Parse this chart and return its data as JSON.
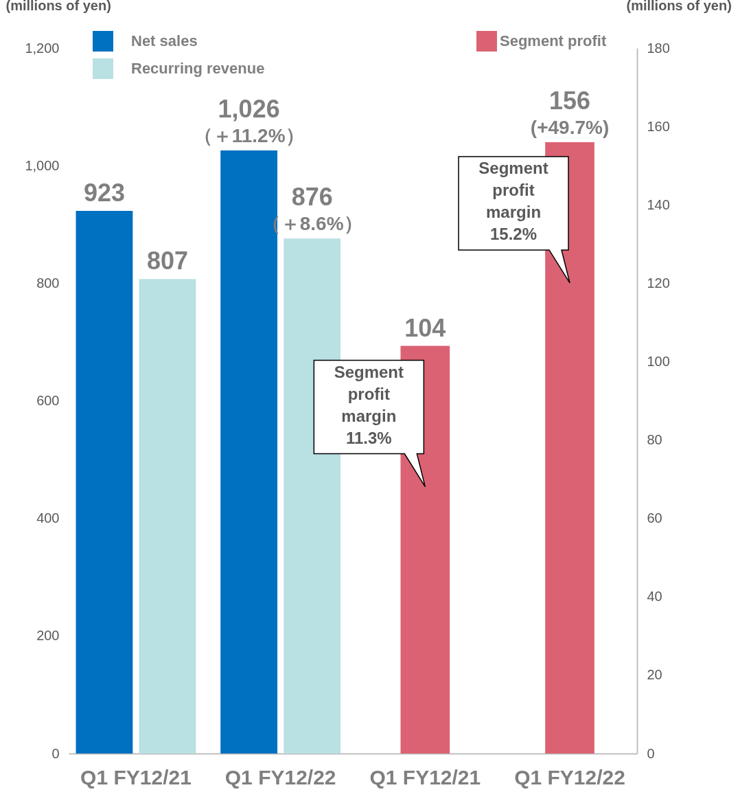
{
  "chart_data": {
    "type": "bar",
    "categories": [
      "Q1 FY12/21",
      "Q1 FY12/22",
      "Q1 FY12/21",
      "Q1 FY12/22"
    ],
    "ylabel": "(millions of yen)",
    "y2label": "(millions of yen)",
    "series": [
      {
        "name": "Net sales",
        "color": "#0070c0",
        "values": [
          923,
          1026,
          null,
          null
        ],
        "value_labels": [
          "923",
          "1,026\n（＋11.2%）",
          null,
          null
        ]
      },
      {
        "name": "Recurring revenue",
        "color": "#b9e0e3",
        "values": [
          807,
          876,
          null,
          null
        ],
        "value_labels": [
          "807",
          "876\n（＋8.6%）",
          null,
          null
        ]
      },
      {
        "name": "Segment profit",
        "color": "#db6272",
        "axis": "y2",
        "values": [
          null,
          null,
          104,
          156
        ],
        "value_labels": [
          null,
          null,
          "104",
          "156\n(+49.7%)"
        ]
      }
    ],
    "ylim": [
      0,
      1200
    ],
    "yticks": [
      0,
      200,
      400,
      600,
      800,
      {
        "value": 1000,
        "label": "1,000"
      },
      {
        "value": 1200,
        "label": "1,200"
      }
    ],
    "y2lim": [
      0,
      180
    ],
    "y2ticks": [
      0,
      20,
      40,
      60,
      80,
      100,
      120,
      140,
      160,
      180
    ],
    "legend": "top",
    "annotations": [
      "Segment profit margin 11.3%",
      "Segment profit margin 15.2%"
    ]
  }
}
